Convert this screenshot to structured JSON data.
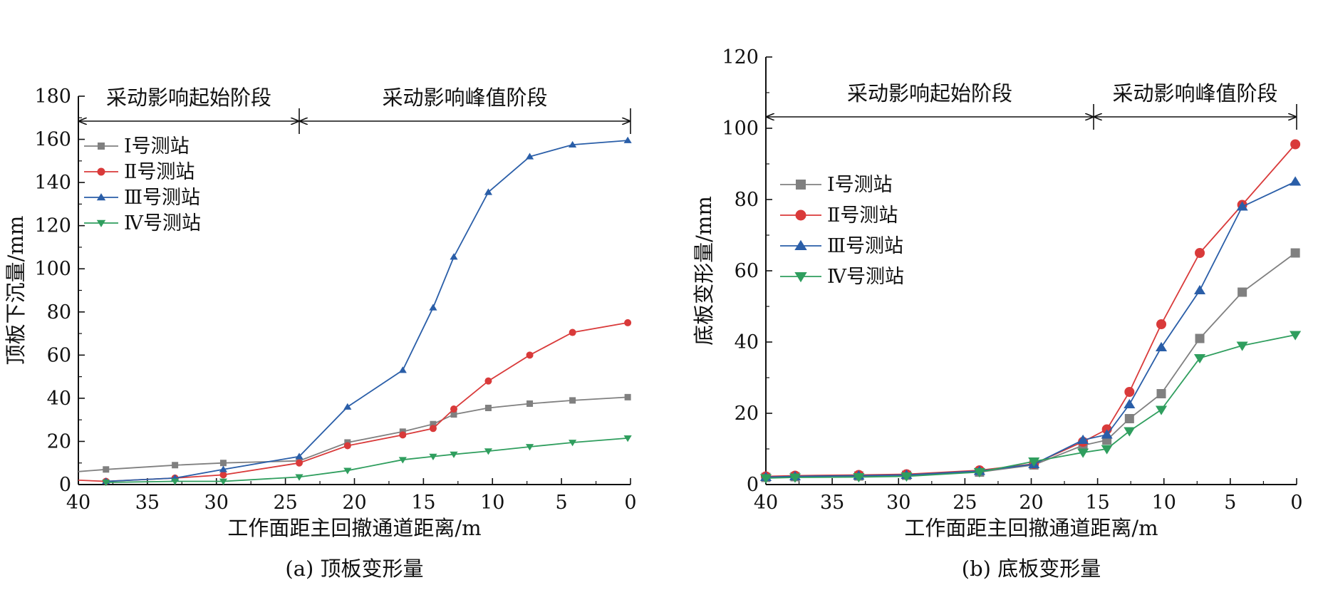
{
  "chart_data": [
    {
      "type": "line",
      "caption": "(a) 顶板变形量",
      "xlabel": "工作面距主回撤通道距离/m",
      "ylabel": "顶板下沉量/mm",
      "xlim": [
        40,
        0
      ],
      "ylim": [
        0,
        180
      ],
      "xticks": [
        40,
        35,
        30,
        25,
        20,
        15,
        10,
        5,
        0
      ],
      "yticks": [
        0,
        20,
        40,
        60,
        80,
        100,
        120,
        140,
        160,
        180
      ],
      "legend_position": "top-left",
      "grid": false,
      "stages": [
        {
          "label": "采动影响起始阶段",
          "from": 40,
          "to": 24
        },
        {
          "label": "采动影响峰值阶段",
          "from": 24,
          "to": 0
        }
      ],
      "series": [
        {
          "name": "Ⅰ号测站",
          "color": "#808080",
          "marker": "square",
          "x": [
            40,
            38,
            33,
            29.5,
            24,
            20.5,
            16.5,
            14.3,
            12.8,
            10.3,
            7.3,
            4.2,
            0.2
          ],
          "y": [
            6,
            7,
            9,
            10,
            11,
            19.5,
            24.5,
            28,
            32.5,
            35.5,
            37.5,
            39,
            40.5
          ]
        },
        {
          "name": "Ⅱ号测站",
          "color": "#d93a3a",
          "marker": "circle",
          "x": [
            40,
            38,
            33,
            29.5,
            24,
            20.5,
            16.5,
            14.3,
            12.8,
            10.3,
            7.3,
            4.2,
            0.2
          ],
          "y": [
            2,
            1.5,
            3,
            4.5,
            10,
            18,
            23,
            26,
            35,
            48,
            60,
            70.5,
            75
          ]
        },
        {
          "name": "Ⅲ号测站",
          "color": "#2a5ea8",
          "marker": "triangle-up",
          "x": [
            38,
            33,
            29.5,
            24,
            20.5,
            16.5,
            14.3,
            12.8,
            10.3,
            7.3,
            4.2,
            0.2
          ],
          "y": [
            1.5,
            3,
            7,
            13,
            36,
            53,
            82,
            105.5,
            135.5,
            152,
            157.5,
            159.5
          ]
        },
        {
          "name": "Ⅳ号测站",
          "color": "#2f9e5e",
          "marker": "triangle-down",
          "x": [
            38,
            33,
            29.5,
            24,
            20.5,
            16.5,
            14.3,
            12.8,
            10.3,
            7.3,
            4.2,
            0.2
          ],
          "y": [
            1,
            1.5,
            1.5,
            3.5,
            6.5,
            11.5,
            13,
            14,
            15.5,
            17.5,
            19.5,
            21.5
          ]
        }
      ]
    },
    {
      "type": "line",
      "caption": "(b) 底板变形量",
      "xlabel": "工作面距主回撤通道距离/m",
      "ylabel": "底板变形量/mm",
      "xlim": [
        40,
        0
      ],
      "ylim": [
        0,
        120
      ],
      "xticks": [
        40,
        35,
        30,
        25,
        20,
        15,
        10,
        5,
        0
      ],
      "yticks": [
        0,
        20,
        40,
        60,
        80,
        100,
        120
      ],
      "legend_position": "left",
      "grid": false,
      "stages": [
        {
          "label": "采动影响起始阶段",
          "from": 40,
          "to": 15.3
        },
        {
          "label": "采动影响峰值阶段",
          "from": 15.3,
          "to": 0
        }
      ],
      "series": [
        {
          "name": "Ⅰ号测站",
          "color": "#808080",
          "marker": "square",
          "x": [
            40,
            37.8,
            33,
            29.4,
            23.9,
            19.8,
            16.1,
            14.3,
            12.6,
            10.2,
            7.3,
            4.1,
            0.1
          ],
          "y": [
            2,
            2.2,
            2.4,
            2.6,
            3.5,
            5.5,
            11,
            12.5,
            18.5,
            25.5,
            41,
            54,
            65
          ]
        },
        {
          "name": "Ⅱ号测站",
          "color": "#d93a3a",
          "marker": "circle",
          "x": [
            40,
            37.8,
            33,
            29.4,
            23.9,
            19.8,
            16.1,
            14.3,
            12.6,
            10.2,
            7.3,
            4.1,
            0.1
          ],
          "y": [
            2.3,
            2.5,
            2.7,
            2.9,
            4,
            5.8,
            12,
            15.5,
            26,
            45,
            65,
            78.5,
            95.5
          ]
        },
        {
          "name": "Ⅲ号测站",
          "color": "#2a5ea8",
          "marker": "triangle-up",
          "x": [
            40,
            37.8,
            33,
            29.4,
            23.9,
            19.8,
            16.1,
            14.3,
            12.6,
            10.2,
            7.3,
            4.1,
            0.1
          ],
          "y": [
            2.1,
            2.3,
            2.5,
            2.7,
            3.8,
            5.7,
            12.5,
            14,
            22.5,
            38.5,
            54.5,
            78,
            85
          ]
        },
        {
          "name": "Ⅳ号测站",
          "color": "#2f9e5e",
          "marker": "triangle-down",
          "x": [
            40,
            37.8,
            33,
            29.4,
            23.9,
            19.8,
            16.1,
            14.3,
            12.6,
            10.2,
            7.3,
            4.1,
            0.1
          ],
          "y": [
            1.8,
            2,
            2.1,
            2.3,
            3.5,
            6.5,
            9,
            10,
            15,
            21,
            35.5,
            39,
            42
          ]
        }
      ]
    }
  ]
}
